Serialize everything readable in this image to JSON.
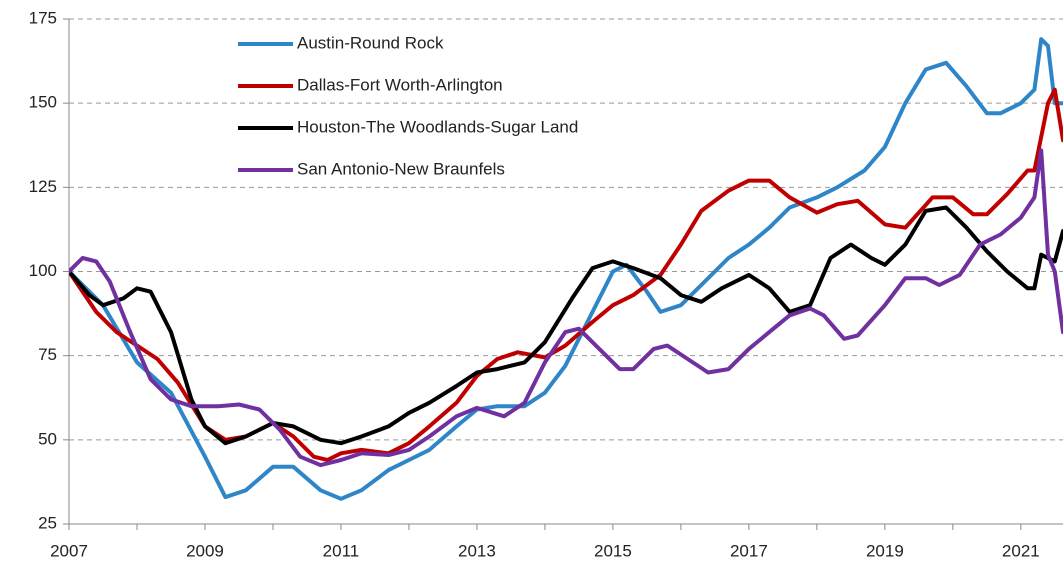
{
  "chart_data": {
    "type": "line",
    "xlim": [
      2007,
      2021.62
    ],
    "xticks": [
      2007,
      2009,
      2011,
      2013,
      2015,
      2017,
      2019,
      2021
    ],
    "xminor_ticks": [
      2008,
      2010,
      2012,
      2014,
      2016,
      2018,
      2020
    ],
    "ylim": [
      25,
      175
    ],
    "yticks": [
      25,
      50,
      75,
      100,
      125,
      150,
      175
    ],
    "grid": true,
    "legend": "upper left",
    "series": [
      {
        "name": "Austin-Round Rock",
        "color": "#2e86c8",
        "x": [
          2007,
          2007.5,
          2008,
          2008.5,
          2009,
          2009.3,
          2009.6,
          2010,
          2010.3,
          2010.7,
          2011,
          2011.3,
          2011.7,
          2012,
          2012.3,
          2012.7,
          2013,
          2013.3,
          2013.7,
          2014,
          2014.3,
          2014.6,
          2015,
          2015.2,
          2015.5,
          2015.7,
          2016,
          2016.3,
          2016.7,
          2017,
          2017.3,
          2017.6,
          2018,
          2018.3,
          2018.7,
          2019,
          2019.3,
          2019.6,
          2019.9,
          2020.2,
          2020.5,
          2020.7,
          2021,
          2021.2,
          2021.3,
          2021.4,
          2021.5,
          2021.62
        ],
        "values": [
          100,
          90,
          73,
          64,
          45,
          33,
          35,
          42,
          42,
          35,
          32.5,
          35,
          41,
          44,
          47,
          54,
          59,
          60,
          60,
          64,
          72,
          84,
          100,
          102,
          94,
          88,
          90,
          96,
          104,
          108,
          113,
          119,
          122,
          125,
          130,
          137,
          150,
          160,
          162,
          155,
          147,
          147,
          150,
          154,
          169,
          167,
          150,
          150
        ]
      },
      {
        "name": "Dallas-Fort Worth-Arlington",
        "color": "#c00000",
        "x": [
          2007,
          2007.4,
          2007.7,
          2008,
          2008.3,
          2008.6,
          2009,
          2009.3,
          2009.6,
          2010,
          2010.3,
          2010.6,
          2010.8,
          2011,
          2011.3,
          2011.7,
          2012,
          2012.3,
          2012.7,
          2013,
          2013.3,
          2013.6,
          2014,
          2014.3,
          2014.7,
          2015,
          2015.3,
          2015.7,
          2016,
          2016.3,
          2016.7,
          2017,
          2017.3,
          2017.6,
          2018,
          2018.3,
          2018.6,
          2019,
          2019.3,
          2019.7,
          2020,
          2020.3,
          2020.5,
          2020.8,
          2021.1,
          2021.2,
          2021.4,
          2021.5,
          2021.62
        ],
        "values": [
          100,
          88,
          82,
          78,
          74,
          67,
          54,
          50,
          51,
          55,
          51,
          45,
          44,
          46,
          47,
          46,
          49,
          54,
          61,
          69,
          74,
          76,
          74.5,
          78,
          85,
          90,
          93,
          99,
          108,
          118,
          124,
          127,
          127,
          122,
          117.5,
          120,
          121,
          114,
          113,
          122,
          122,
          117,
          117,
          123,
          130,
          130,
          150,
          154,
          139
        ]
      },
      {
        "name": "Houston-The Woodlands-Sugar Land",
        "color": "#000000",
        "x": [
          2007,
          2007.3,
          2007.5,
          2007.8,
          2008,
          2008.2,
          2008.5,
          2008.8,
          2009,
          2009.3,
          2009.6,
          2010,
          2010.3,
          2010.7,
          2011,
          2011.3,
          2011.7,
          2012,
          2012.3,
          2012.7,
          2013,
          2013.3,
          2013.7,
          2014,
          2014.4,
          2014.7,
          2015,
          2015.3,
          2015.7,
          2016,
          2016.3,
          2016.6,
          2017,
          2017.3,
          2017.6,
          2017.9,
          2018.2,
          2018.5,
          2018.8,
          2019,
          2019.3,
          2019.6,
          2019.9,
          2020.2,
          2020.5,
          2020.8,
          2021.1,
          2021.2,
          2021.3,
          2021.5,
          2021.62
        ],
        "values": [
          100,
          93,
          90,
          92,
          95,
          94,
          82,
          62,
          54,
          49,
          51,
          55,
          54,
          50,
          49,
          51,
          54,
          58,
          61,
          66,
          70,
          71,
          73,
          79,
          92,
          101,
          103,
          101,
          98,
          93,
          91,
          95,
          99,
          95,
          88,
          90,
          104,
          108,
          104,
          102,
          108,
          118,
          119,
          113,
          106,
          100,
          95,
          95,
          105,
          103,
          112
        ]
      },
      {
        "name": "San Antonio-New Braunfels",
        "color": "#7030a0",
        "x": [
          2007,
          2007.2,
          2007.4,
          2007.6,
          2007.9,
          2008.2,
          2008.5,
          2008.8,
          2009.2,
          2009.5,
          2009.8,
          2010.1,
          2010.4,
          2010.7,
          2011,
          2011.3,
          2011.7,
          2012,
          2012.3,
          2012.7,
          2013,
          2013.4,
          2013.7,
          2014,
          2014.3,
          2014.5,
          2014.8,
          2015.1,
          2015.3,
          2015.6,
          2015.8,
          2016.1,
          2016.4,
          2016.7,
          2017,
          2017.3,
          2017.6,
          2017.9,
          2018.1,
          2018.4,
          2018.6,
          2019,
          2019.3,
          2019.6,
          2019.8,
          2020.1,
          2020.4,
          2020.7,
          2021,
          2021.2,
          2021.3,
          2021.4,
          2021.5,
          2021.62
        ],
        "values": [
          100,
          104,
          103,
          97,
          82,
          68,
          62,
          60,
          60,
          60.5,
          59,
          53,
          45,
          42.5,
          44,
          46,
          45.5,
          47,
          51,
          57,
          59.5,
          57,
          61,
          73,
          82,
          83,
          77,
          71,
          71,
          77,
          78,
          74,
          70,
          71,
          77,
          82,
          87,
          89,
          87,
          80,
          81,
          90,
          98,
          98,
          96,
          99,
          108,
          111,
          116,
          122,
          136,
          105,
          100,
          82
        ]
      }
    ]
  }
}
